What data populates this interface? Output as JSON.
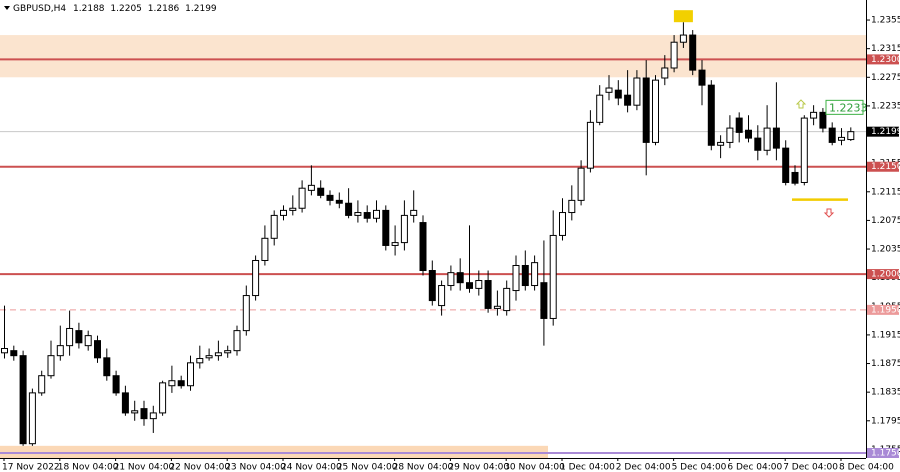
{
  "chart_data": {
    "type": "candlestick",
    "symbol": "GBPUSD,H4",
    "categories": [
      "17 Nov 2022",
      null,
      null,
      null,
      null,
      null,
      "18 Nov 04:00",
      null,
      null,
      null,
      null,
      null,
      "21 Nov 04:00",
      null,
      null,
      null,
      null,
      null,
      "22 Nov 04:00",
      null,
      null,
      null,
      null,
      null,
      "23 Nov 04:00",
      null,
      null,
      null,
      null,
      null,
      "24 Nov 04:00",
      null,
      null,
      null,
      null,
      null,
      "25 Nov 04:00",
      null,
      null,
      null,
      null,
      null,
      "28 Nov 04:00",
      null,
      null,
      null,
      null,
      null,
      "29 Nov 04:00",
      null,
      null,
      null,
      null,
      null,
      "30 Nov 04:00",
      null,
      null,
      null,
      null,
      null,
      "1 Dec 04:00",
      null,
      null,
      null,
      null,
      null,
      "2 Dec 04:00",
      null,
      null,
      null,
      null,
      null,
      "5 Dec 04:00",
      null,
      null,
      null,
      null,
      null,
      "6 Dec 04:00",
      null,
      null,
      null,
      null,
      null,
      "7 Dec 04:00",
      null,
      null,
      null,
      null,
      null,
      "8 Dec 04:00",
      null
    ],
    "open": [
      1.189,
      1.1893,
      1.1886,
      1.1763,
      1.1834,
      1.1858,
      1.1886,
      1.19,
      1.1921,
      1.19,
      1.1907,
      1.1883,
      1.1858,
      1.1834,
      1.1806,
      1.1812,
      1.1798,
      1.1806,
      1.1844,
      1.1851,
      1.1844,
      1.1876,
      1.1883,
      1.1886,
      1.189,
      1.1893,
      1.1921,
      1.197,
      1.2019,
      1.205,
      1.2082,
      1.2089,
      1.2092,
      1.2117,
      1.212,
      1.211,
      1.2103,
      1.2099,
      1.2082,
      1.2086,
      1.2078,
      1.2089,
      1.204,
      1.2044,
      1.2082,
      1.2072,
      1.2005,
      1.1956,
      1.1984,
      1.2002,
      1.1988,
      1.198,
      1.1991,
      1.1952,
      1.1949,
      1.1977,
      1.2012,
      1.1984,
      1.1988,
      1.1938,
      1.2054,
      1.2086,
      1.2103,
      1.2148,
      1.2212,
      1.2254,
      1.2257,
      1.225,
      1.2236,
      1.2274,
      1.2184,
      1.2274,
      1.2288,
      1.2324,
      1.2334,
      1.2285,
      1.2264,
      1.218,
      1.2184,
      1.2218,
      1.2201,
      1.219,
      1.2173,
      1.2204,
      1.2176,
      1.2142,
      1.2128,
      1.2218,
      1.2226,
      1.2204,
      1.2187,
      1.2188
    ],
    "high": [
      1.1956,
      1.19,
      1.1893,
      1.184,
      1.1865,
      1.1907,
      1.1928,
      1.1949,
      1.1932,
      1.1921,
      1.1914,
      1.1896,
      1.1865,
      1.1844,
      1.1823,
      1.1823,
      1.1816,
      1.1851,
      1.1872,
      1.1858,
      1.1886,
      1.19,
      1.1896,
      1.1907,
      1.19,
      1.1928,
      1.1984,
      1.2026,
      1.2068,
      1.2089,
      1.2096,
      1.211,
      1.2131,
      1.2152,
      1.2131,
      1.2117,
      1.2114,
      1.212,
      1.2103,
      1.2096,
      1.2103,
      1.2096,
      1.2068,
      1.2103,
      1.2117,
      1.2082,
      1.2019,
      1.1991,
      1.2012,
      1.2022,
      1.2068,
      1.2005,
      1.2005,
      1.1977,
      1.1991,
      1.2026,
      1.2033,
      1.2026,
      1.2047,
      1.2089,
      1.2106,
      1.2124,
      1.2159,
      1.2229,
      1.2264,
      1.2278,
      1.2271,
      1.2285,
      1.2285,
      1.2299,
      1.2278,
      1.2306,
      1.2334,
      1.2352,
      1.2341,
      1.2299,
      1.2271,
      1.2194,
      1.2222,
      1.2226,
      1.2222,
      1.2208,
      1.2236,
      1.2268,
      1.2187,
      1.2152,
      1.2222,
      1.2236,
      1.2232,
      1.2212,
      1.2204,
      1.2205
    ],
    "low": [
      1.1882,
      1.1879,
      1.176,
      1.176,
      1.183,
      1.1854,
      1.1879,
      1.1886,
      1.1896,
      1.1893,
      1.1876,
      1.1851,
      1.183,
      1.1802,
      1.1795,
      1.1788,
      1.1778,
      1.1802,
      1.1834,
      1.184,
      1.1837,
      1.1868,
      1.1879,
      1.1879,
      1.1883,
      1.1886,
      1.1914,
      1.1963,
      1.2012,
      1.204,
      1.2075,
      1.2082,
      1.2086,
      1.211,
      1.2106,
      1.2096,
      1.2092,
      1.2078,
      1.2072,
      1.2072,
      1.2072,
      1.2033,
      1.2026,
      1.2033,
      1.2072,
      1.1998,
      1.1956,
      1.1942,
      1.1977,
      1.1977,
      1.1974,
      1.197,
      1.1946,
      1.1942,
      1.1942,
      1.1963,
      1.1977,
      1.1977,
      1.19,
      1.1928,
      1.2047,
      1.2075,
      1.2096,
      1.2142,
      1.2208,
      1.2243,
      1.2236,
      1.2226,
      1.2229,
      1.2138,
      1.218,
      1.2264,
      1.2282,
      1.2316,
      1.2278,
      1.2236,
      1.2173,
      1.2162,
      1.2176,
      1.2184,
      1.2184,
      1.2159,
      1.2166,
      1.2159,
      1.2124,
      1.2124,
      1.2124,
      1.2208,
      1.2198,
      1.218,
      1.218,
      1.2186
    ],
    "close": [
      1.1896,
      1.1886,
      1.1763,
      1.1834,
      1.1858,
      1.1886,
      1.19,
      1.1924,
      1.1904,
      1.1914,
      1.1883,
      1.1858,
      1.1834,
      1.1806,
      1.1809,
      1.1798,
      1.1806,
      1.1848,
      1.1851,
      1.1844,
      1.1876,
      1.1882,
      1.1886,
      1.189,
      1.1893,
      1.1921,
      1.197,
      1.2019,
      1.205,
      1.2082,
      1.2089,
      1.2092,
      1.212,
      1.2124,
      1.211,
      1.2103,
      1.2099,
      1.2082,
      1.2086,
      1.2078,
      1.2089,
      1.204,
      1.2044,
      1.2082,
      1.2089,
      1.2005,
      1.1963,
      1.1984,
      1.2002,
      1.1988,
      1.198,
      1.1991,
      1.1952,
      1.1955,
      1.198,
      1.2012,
      1.1984,
      1.2016,
      1.1938,
      1.2054,
      1.2086,
      1.2103,
      1.2148,
      1.2212,
      1.225,
      1.226,
      1.2246,
      1.2236,
      1.2274,
      1.2184,
      1.2271,
      1.2288,
      1.2324,
      1.2334,
      1.2285,
      1.2264,
      1.218,
      1.2184,
      1.2204,
      1.2198,
      1.219,
      1.2173,
      1.2204,
      1.2176,
      1.2128,
      1.2127,
      1.2218,
      1.2226,
      1.2204,
      1.2184,
      1.2191,
      1.2199
    ],
    "ylim": [
      1.1743,
      1.2383
    ],
    "yticks": [
      1.2355,
      1.2315,
      1.2275,
      1.2235,
      1.2155,
      1.2115,
      1.2075,
      1.2035,
      1.1995,
      1.1955,
      1.1915,
      1.1875,
      1.1835,
      1.1795,
      1.1755
    ],
    "levels": [
      {
        "value": 1.23,
        "label": "1.2300",
        "color": "#cc5050",
        "dashed": false
      },
      {
        "value": 1.215,
        "label": "1.2150",
        "color": "#cc5050",
        "dashed": false
      },
      {
        "value": 1.2,
        "label": "1.2000",
        "color": "#cc5050",
        "dashed": false
      },
      {
        "value": 1.195,
        "label": "1.1950",
        "color": "#ec9a9a",
        "dashed": true
      },
      {
        "value": 1.175,
        "label": "1.1750",
        "color": "#a98ad6",
        "dashed": false
      }
    ],
    "zones": [
      {
        "from": 1.2334,
        "to": 1.2275,
        "color": "#fbe4cf"
      },
      {
        "from": 1.176,
        "to": 1.1743,
        "color": "#fbd8b6"
      }
    ],
    "signal_label": 1.2233,
    "support_mark": 1.2104
  }
}
